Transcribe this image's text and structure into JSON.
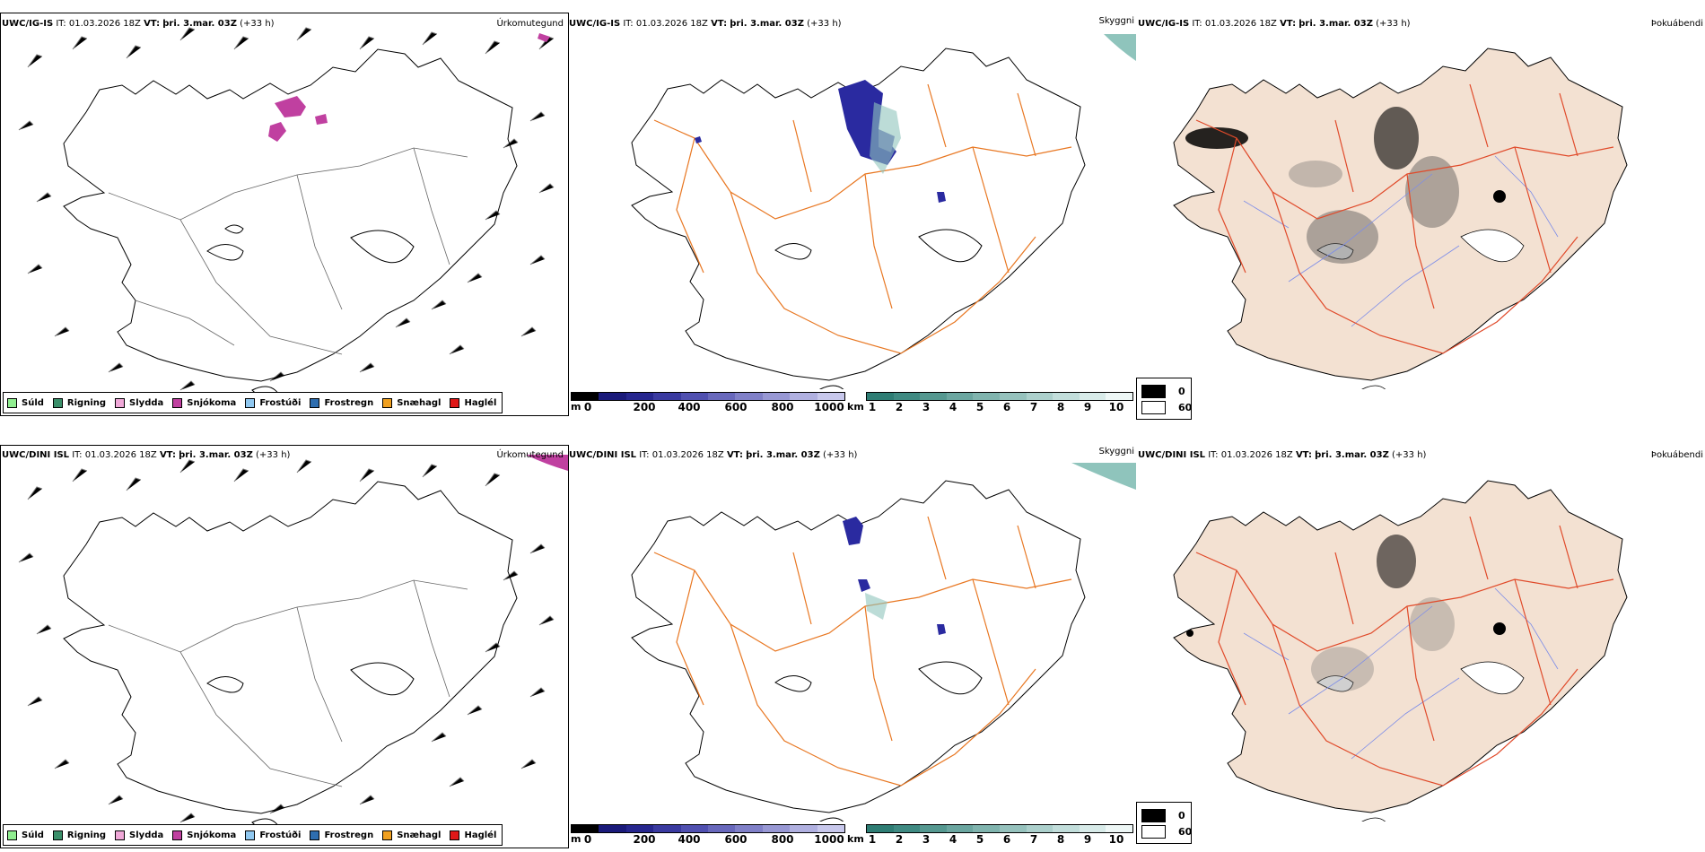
{
  "rows": [
    {
      "model": "UWC/IG-IS",
      "it_label": "IT:",
      "it_value": "01.03.2026 18Z",
      "vt_label": "VT:",
      "vt_value": "þri. 3.mar. 03Z",
      "lead": "(+33 h)"
    },
    {
      "model": "UWC/DINI ISL",
      "it_label": "IT:",
      "it_value": "01.03.2026 18Z",
      "vt_label": "VT:",
      "vt_value": "þri. 3.mar. 03Z",
      "lead": "(+33 h)"
    }
  ],
  "panel_titles": {
    "precip": "Úrkomutegund",
    "visibility": "Skyggni",
    "fog": "Þokuábendi"
  },
  "precip_legend": [
    {
      "label": "Súld",
      "color": "#90ee90"
    },
    {
      "label": "Rigning",
      "color": "#3a8f6a"
    },
    {
      "label": "Slydda",
      "color": "#f0a8d8"
    },
    {
      "label": "Snjókoma",
      "color": "#c040a0"
    },
    {
      "label": "Frostúði",
      "color": "#90c8f0"
    },
    {
      "label": "Frostregn",
      "color": "#2e6eb0"
    },
    {
      "label": "Snæhagl",
      "color": "#f0a020"
    },
    {
      "label": "Haglél",
      "color": "#e01818"
    }
  ],
  "cloud_base_bar": {
    "unit": "m",
    "ticks": [
      "0",
      "200",
      "400",
      "600",
      "800",
      "1000"
    ],
    "colors": [
      "#000000",
      "#1a1a7a",
      "#26268e",
      "#3a3aa0",
      "#5050b0",
      "#6868bc",
      "#8080c8",
      "#9898d4",
      "#b0b0e0",
      "#c8c8ec"
    ]
  },
  "visibility_bar": {
    "unit": "km",
    "ticks": [
      "1",
      "2",
      "3",
      "4",
      "5",
      "6",
      "7",
      "8",
      "9",
      "10"
    ],
    "colors": [
      "#2e7d74",
      "#3f8a82",
      "#559890",
      "#6ba6a0",
      "#80b4ae",
      "#96c2bd",
      "#acd0cc",
      "#c2dedb",
      "#d8ebe9",
      "#eef7f6"
    ]
  },
  "fog_legend": {
    "low": "0",
    "high": "60",
    "low_color": "#000000",
    "high_color": "#ffffff"
  },
  "colors": {
    "land_fog": "#f3e1d2",
    "roads": "#e87722",
    "roads_fog": "#e04a2a",
    "rivers": "#7c8ce8",
    "snow": "#c040a0"
  }
}
